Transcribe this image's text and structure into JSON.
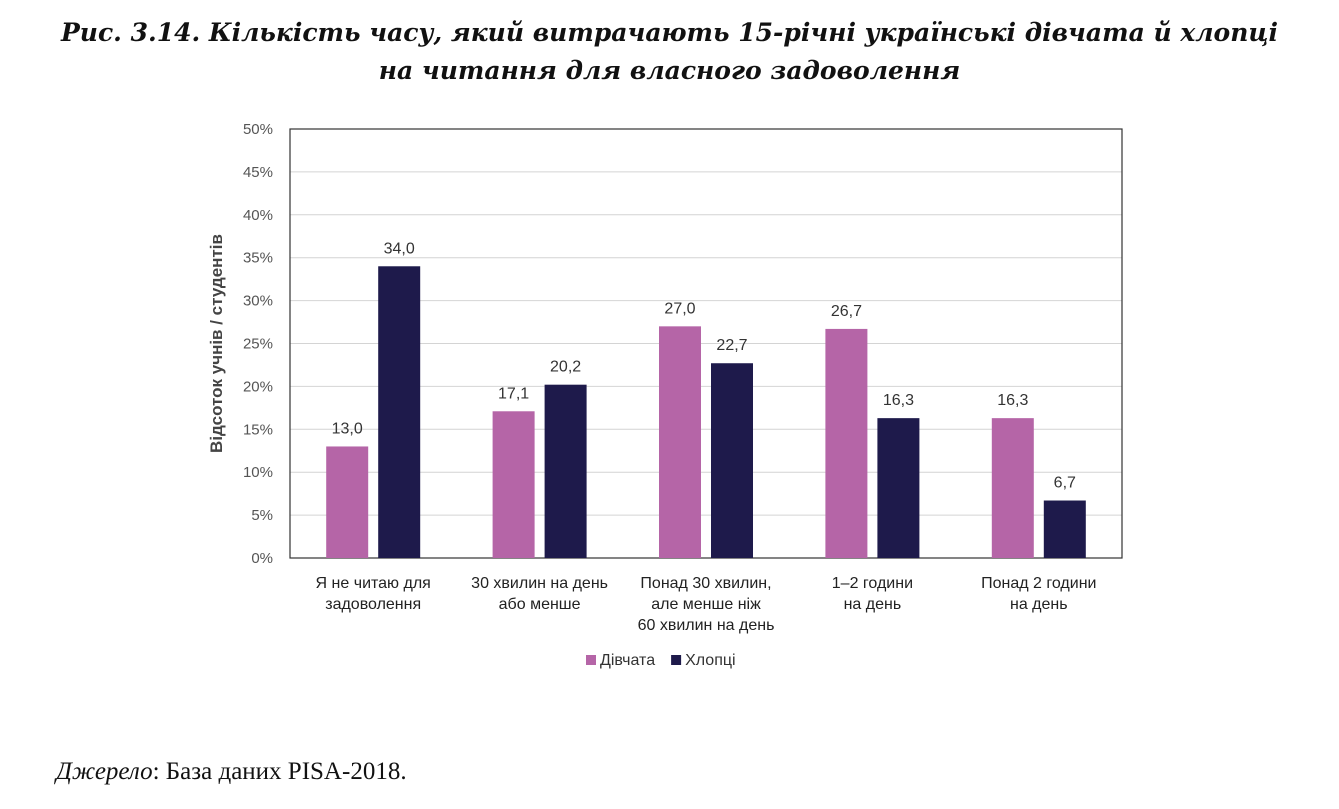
{
  "figure": {
    "title_line1": "Рис. 3.14. Кількість часу, який витрачають 15-річні українські дівчата й хлопці",
    "title_line2": "на читання для власного задоволення"
  },
  "source": {
    "label": "Джерело",
    "text": ": База даних PISA-2018."
  },
  "chart_data": {
    "type": "bar",
    "title": "Рис. 3.14. Кількість часу, який витрачають 15-річні українські дівчата й хлопці на читання для власного задоволення",
    "ylabel": "Відсоток учнів / студентів",
    "xlabel": "",
    "ylim": [
      0,
      50
    ],
    "yticks": [
      "0%",
      "5%",
      "10%",
      "15%",
      "20%",
      "25%",
      "30%",
      "35%",
      "40%",
      "45%",
      "50%"
    ],
    "grid": true,
    "legend_position": "bottom",
    "categories": [
      [
        "Я не читаю для",
        "задоволення"
      ],
      [
        "30 хвилин  на день",
        "або менше"
      ],
      [
        "Понад 30 хвилин,",
        "але менше ніж",
        "60 хвилин  на день"
      ],
      [
        "1–2 години",
        "на день"
      ],
      [
        "Понад 2 години",
        "на день"
      ]
    ],
    "series": [
      {
        "name": "Дівчата",
        "color": "#b565a7",
        "values": [
          13.0,
          17.1,
          27.0,
          26.7,
          16.3
        ],
        "labels": [
          "13,0",
          "17,1",
          "27,0",
          "26,7",
          "16,3"
        ]
      },
      {
        "name": "Хлопці",
        "color": "#1e1a4b",
        "values": [
          34.0,
          20.2,
          22.7,
          16.3,
          6.7
        ],
        "labels": [
          "34,0",
          "20,2",
          "22,7",
          "16,3",
          "6,7"
        ]
      }
    ]
  }
}
